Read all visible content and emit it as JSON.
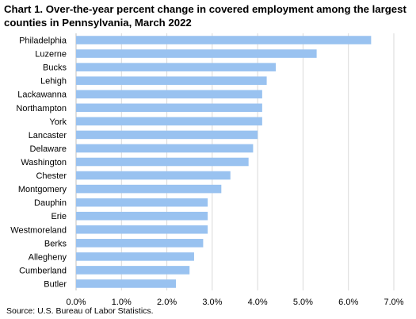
{
  "chart_data": {
    "type": "bar",
    "orientation": "horizontal",
    "title": "Chart 1. Over-the-year percent change in covered employment among the largest counties in Pennsylvania, March 2022",
    "categories": [
      "Philadelphia",
      "Luzerne",
      "Bucks",
      "Lehigh",
      "Lackawanna",
      "Northampton",
      "York",
      "Lancaster",
      "Delaware",
      "Washington",
      "Chester",
      "Montgomery",
      "Dauphin",
      "Erie",
      "Westmoreland",
      "Berks",
      "Allegheny",
      "Cumberland",
      "Butler"
    ],
    "values": [
      6.5,
      5.3,
      4.4,
      4.2,
      4.1,
      4.1,
      4.1,
      4.0,
      3.9,
      3.8,
      3.4,
      3.2,
      2.9,
      2.9,
      2.9,
      2.8,
      2.6,
      2.5,
      2.2
    ],
    "xlim": [
      0,
      7
    ],
    "x_ticks": [
      "0.0%",
      "1.0%",
      "2.0%",
      "3.0%",
      "4.0%",
      "5.0%",
      "6.0%",
      "7.0%"
    ],
    "bar_color": "#99c2f0",
    "grid": "vertical",
    "xlabel": "",
    "ylabel": "",
    "source": "Source: U.S. Bureau of Labor Statistics."
  }
}
